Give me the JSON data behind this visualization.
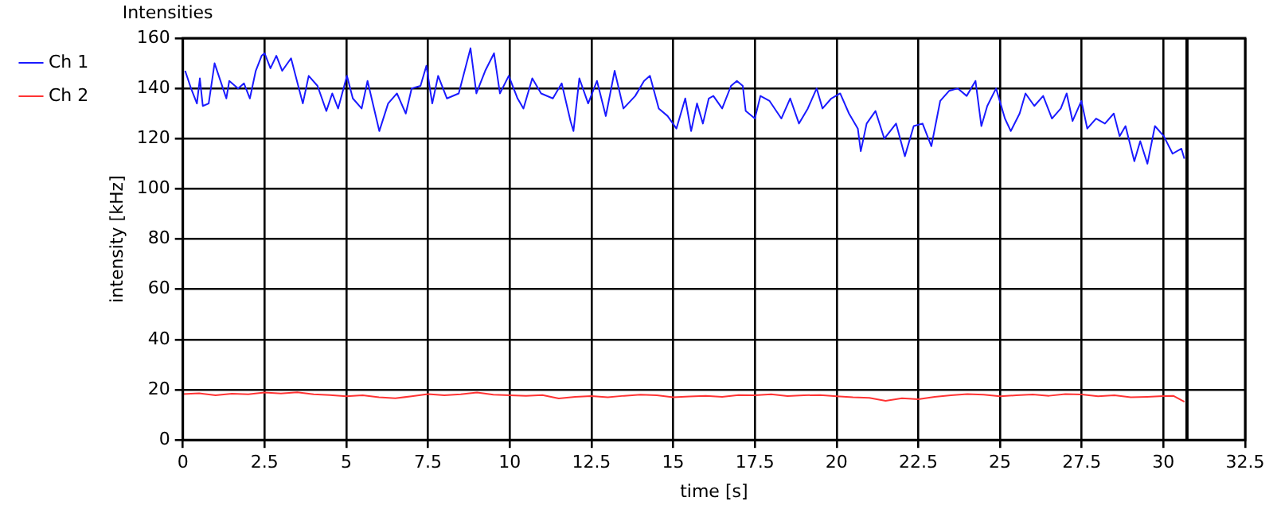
{
  "chart_data": {
    "type": "line",
    "title": "Intensities",
    "xlabel": "time [s]",
    "ylabel": "intensity [kHz]",
    "xlim": [
      0,
      32.5
    ],
    "xticks": [
      0,
      2.5,
      5,
      7.5,
      10,
      12.5,
      15,
      17.5,
      20,
      22.5,
      25,
      27.5,
      30,
      32.5
    ],
    "ylim": [
      0,
      160
    ],
    "yticks": [
      0,
      20,
      40,
      60,
      80,
      100,
      120,
      140,
      160
    ],
    "grid": true,
    "legend": "top left",
    "marker": "none",
    "line_style": "solid",
    "ref_lines": [
      {
        "axis": "x",
        "value": 30.72,
        "color": "#000000"
      }
    ],
    "series": [
      {
        "name": "Ch 1",
        "color": "#1a1aff",
        "x": [
          0.07,
          0.25,
          0.43,
          0.52,
          0.61,
          0.79,
          0.97,
          1.15,
          1.33,
          1.42,
          1.69,
          1.87,
          2.05,
          2.23,
          2.41,
          2.5,
          2.68,
          2.86,
          3.04,
          3.31,
          3.49,
          3.67,
          3.85,
          4.12,
          4.39,
          4.57,
          4.75,
          5.02,
          5.2,
          5.47,
          5.65,
          6.01,
          6.28,
          6.55,
          6.82,
          7.0,
          7.27,
          7.45,
          7.63,
          7.81,
          8.08,
          8.44,
          8.8,
          8.98,
          9.25,
          9.52,
          9.7,
          9.97,
          10.24,
          10.42,
          10.69,
          10.96,
          11.32,
          11.59,
          11.86,
          11.95,
          12.13,
          12.4,
          12.67,
          12.94,
          13.21,
          13.48,
          13.84,
          14.11,
          14.29,
          14.56,
          14.83,
          15.1,
          15.37,
          15.55,
          15.73,
          15.91,
          16.09,
          16.23,
          16.5,
          16.77,
          16.95,
          17.13,
          17.22,
          17.5,
          17.67,
          17.95,
          18.31,
          18.58,
          18.85,
          19.12,
          19.39,
          19.57,
          19.84,
          20.11,
          20.38,
          20.65,
          20.74,
          20.92,
          21.19,
          21.46,
          21.82,
          22.09,
          22.36,
          22.63,
          22.9,
          23.17,
          23.44,
          23.71,
          23.98,
          24.25,
          24.43,
          24.61,
          24.88,
          25.15,
          25.33,
          25.6,
          25.78,
          26.05,
          26.32,
          26.59,
          26.86,
          27.04,
          27.22,
          27.49,
          27.67,
          27.94,
          28.21,
          28.48,
          28.66,
          28.84,
          29.11,
          29.29,
          29.51,
          29.74,
          30.01,
          30.28,
          30.55,
          30.64
        ],
        "values": [
          147,
          140,
          134,
          144,
          133,
          134,
          150,
          143,
          136,
          143,
          140,
          142,
          136,
          147,
          153,
          154,
          148,
          153,
          147,
          152,
          143,
          134,
          145,
          141,
          131,
          138,
          132,
          145,
          136,
          132,
          143,
          123,
          134,
          138,
          130,
          140,
          141,
          149,
          134,
          145,
          136,
          138,
          156,
          138,
          147,
          154,
          138,
          145,
          136,
          132,
          144,
          138,
          136,
          142,
          127,
          123,
          144,
          134,
          143,
          129,
          147,
          132,
          137,
          143,
          145,
          132,
          129,
          124,
          136,
          123,
          134,
          126,
          136,
          137,
          132,
          141,
          143,
          141,
          131,
          128,
          137,
          135,
          128,
          136,
          126,
          132,
          140,
          132,
          136,
          138,
          130,
          124,
          115,
          126,
          131,
          120,
          126,
          113,
          125,
          126,
          117,
          135,
          139,
          140,
          137,
          143,
          125,
          133,
          140,
          128,
          123,
          130,
          138,
          133,
          137,
          128,
          132,
          138,
          127,
          135,
          124,
          128,
          126,
          130,
          121,
          125,
          111,
          119,
          110,
          125,
          121,
          114,
          116,
          112
        ]
      },
      {
        "name": "Ch 2",
        "color": "#ff3333",
        "x": [
          0,
          0.5,
          1,
          1.5,
          2,
          2.5,
          3,
          3.5,
          4,
          4.5,
          5,
          5.5,
          6,
          6.5,
          7,
          7.5,
          8,
          8.5,
          9,
          9.5,
          10,
          10.5,
          11,
          11.5,
          12,
          12.5,
          13,
          13.5,
          14,
          14.5,
          15,
          15.5,
          16,
          16.5,
          17,
          17.5,
          18,
          18.5,
          19,
          19.5,
          20,
          20.5,
          21,
          21.5,
          22,
          22.5,
          23,
          23.5,
          24,
          24.5,
          25,
          25.5,
          26,
          26.5,
          27,
          27.5,
          28,
          28.5,
          29,
          29.5,
          30,
          30.3,
          30.64
        ],
        "values": [
          18.3,
          18.6,
          17.8,
          18.4,
          18.2,
          18.9,
          18.5,
          19.0,
          18.2,
          17.9,
          17.4,
          17.8,
          17.0,
          16.6,
          17.4,
          18.3,
          17.8,
          18.2,
          18.9,
          18.0,
          17.8,
          17.6,
          17.9,
          16.5,
          17.2,
          17.5,
          17.0,
          17.6,
          18.0,
          17.8,
          17.0,
          17.3,
          17.6,
          17.2,
          17.9,
          17.8,
          18.2,
          17.5,
          17.8,
          17.9,
          17.4,
          17.0,
          16.8,
          15.6,
          16.6,
          16.2,
          17.2,
          17.8,
          18.3,
          18.0,
          17.4,
          17.8,
          18.1,
          17.6,
          18.3,
          18.1,
          17.4,
          17.8,
          17.0,
          17.2,
          17.5,
          17.6,
          15.2
        ]
      }
    ]
  }
}
